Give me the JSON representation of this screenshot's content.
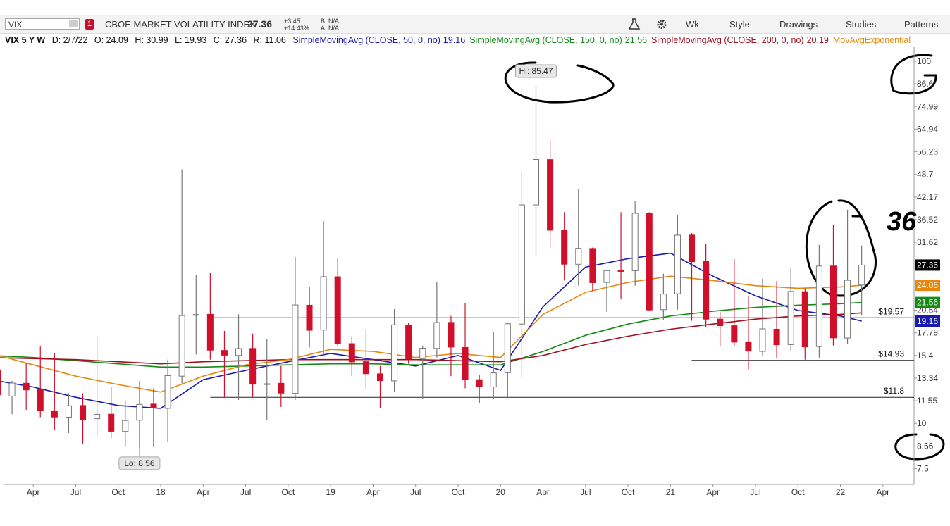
{
  "toolbar": {
    "symbol": "VIX",
    "alert_count": "1",
    "description": "CBOE MARKET VOLATILITY INDEX",
    "last": "27.36",
    "change": "+3.45",
    "change_pct": "+14.43%",
    "bid": "B: N/A",
    "ask": "A: N/A",
    "buttons": [
      "Wk",
      "Style",
      "Drawings",
      "Studies",
      "Patterns"
    ]
  },
  "legend_row": {
    "symbol_period": "VIX 5 Y W",
    "date": "D: 2/7/22",
    "open": "O: 24.09",
    "high": "H: 30.99",
    "low": "L: 19.93",
    "close": "C: 27.36",
    "range": "R: 11.06"
  },
  "chart_data": {
    "type": "candlestick",
    "x": [
      0.5,
      1.5,
      2.5,
      3.5,
      4.5,
      5.5,
      6.5,
      7.5,
      8.5,
      9.5,
      10.5,
      11.5,
      12.5,
      13.5,
      14.5,
      15.5,
      16.5,
      17.5,
      18.5,
      19.5,
      20.5,
      21.5,
      22.5,
      23.5,
      24.5,
      25.5,
      26.5,
      27.5,
      28.5,
      29.5,
      30.5,
      31.5,
      32.5,
      33.5,
      34.5,
      35.5,
      36.5,
      37.5,
      38.5,
      39.5,
      40.5,
      41.5,
      42.5,
      43.5,
      44.5,
      45.5,
      46.5,
      47.5,
      48.5,
      49.5,
      50.5,
      51.5,
      52.5,
      53.5,
      54.5,
      55.5,
      56.5,
      57.5,
      58.5,
      59.5,
      60.5,
      61.5
    ],
    "open": [
      14.04,
      11.9,
      12.9,
      12.4,
      10.8,
      10.4,
      11.2,
      10.3,
      10.6,
      9.5,
      10.2,
      11.3,
      11,
      13.5,
      19.9,
      20,
      15.9,
      15.4,
      16.1,
      12.8,
      12.9,
      12.1,
      21.2,
      18.1,
      25.4,
      16.6,
      14.8,
      13.7,
      13.1,
      18.7,
      15.1,
      16.1,
      19,
      16.2,
      13.2,
      12.6,
      13.8,
      18.8,
      40.1,
      53.5,
      34.2,
      27.5,
      30.4,
      24.5,
      26.4,
      26.4,
      38,
      20.6,
      22.8,
      33.1,
      28,
      19.4,
      18.6,
      16.8,
      15.8,
      18.2,
      16.5,
      23.1,
      16.3,
      27.2,
      17.2,
      24.09
    ],
    "high": [
      14.2,
      13.1,
      14.7,
      16.3,
      15.6,
      12.1,
      12.1,
      17.3,
      12.6,
      11.5,
      13.1,
      12.5,
      15,
      50.3,
      25.7,
      26,
      18,
      20,
      17.7,
      17.1,
      14.4,
      28.8,
      23.8,
      36.2,
      28.5,
      17.4,
      18.2,
      14.4,
      20.7,
      18.9,
      16.4,
      24.6,
      19.8,
      21.5,
      13.6,
      17.9,
      19,
      49.5,
      85.47,
      60.6,
      38.3,
      44.4,
      30.6,
      26,
      38.3,
      41.2,
      38.3,
      25.9,
      37.5,
      33.5,
      31.3,
      20.3,
      28.4,
      22.5,
      25.1,
      24.7,
      26.9,
      23.6,
      31.1,
      35.3,
      38.9,
      30.99
    ],
    "low": [
      10.6,
      10.6,
      10.9,
      10.4,
      9.6,
      9.4,
      8.8,
      9.2,
      9.1,
      8.6,
      8.56,
      8.6,
      8.9,
      12.9,
      15.5,
      15,
      11.8,
      11.6,
      11.8,
      10.2,
      11.1,
      11.6,
      16.2,
      15.3,
      16.3,
      13.5,
      12.4,
      11,
      12.2,
      14.6,
      11.7,
      15.2,
      13.5,
      12.5,
      11.4,
      11.7,
      11.8,
      13.4,
      29,
      30.5,
      24.8,
      24,
      23.2,
      20.3,
      22,
      24,
      20.4,
      19.3,
      20.6,
      19.2,
      18.4,
      16.3,
      16.3,
      14.1,
      15.4,
      15.1,
      15.9,
      15,
      15.2,
      16.4,
      16.6,
      19.93
    ],
    "close": [
      11.99,
      12.92,
      12.37,
      10.82,
      10.41,
      11.18,
      10.26,
      10.59,
      9.51,
      10.18,
      11.28,
      11.04,
      13.54,
      19.85,
      19.97,
      15.93,
      15.43,
      16.09,
      12.83,
      12.86,
      12.12,
      21.23,
      18.07,
      25.42,
      16.57,
      14.78,
      13.71,
      13.12,
      18.71,
      15.08,
      16.12,
      18.98,
      16.24,
      13.22,
      12.62,
      13.78,
      18.84,
      40.11,
      53.54,
      34.15,
      27.51,
      30.43,
      24.46,
      26.41,
      26.37,
      38.02,
      20.57,
      22.75,
      33.09,
      27.95,
      19.4,
      18.61,
      16.76,
      15.83,
      18.24,
      16.48,
      23.14,
      16.26,
      27.19,
      17.22,
      24.83,
      27.36
    ],
    "up_color": "#ffffff",
    "down_color": "#d0102a",
    "series": [
      {
        "name": "SimpleMovingAvg (CLOSE, 50, 0, no)",
        "color": "#1a1ab0",
        "x": [
          0,
          3,
          6,
          9,
          12,
          15,
          18,
          21,
          24,
          27,
          30,
          33,
          36,
          39,
          42,
          45,
          48,
          51,
          54,
          57,
          60,
          61.5
        ],
        "values": [
          13.2,
          12.6,
          11.8,
          11.2,
          11,
          13.2,
          14,
          14.8,
          15.6,
          15,
          14.4,
          15.4,
          14,
          21,
          27,
          28.5,
          29.5,
          25.5,
          22.5,
          20.5,
          19.8,
          19.16
        ]
      },
      {
        "name": "SimpleMovingAvg (CLOSE, 150, 0, no)",
        "color": "#168a16",
        "x": [
          0,
          3,
          6,
          9,
          12,
          15,
          18,
          21,
          24,
          27,
          30,
          33,
          36,
          39,
          42,
          45,
          48,
          51,
          54,
          57,
          60,
          61.5
        ],
        "values": [
          15.4,
          15.2,
          14.9,
          14.6,
          14.3,
          14.3,
          14.4,
          14.5,
          14.6,
          14.6,
          14.5,
          14.5,
          14.5,
          15.8,
          17.5,
          18.8,
          19.8,
          20.4,
          20.9,
          21.2,
          21.4,
          21.56
        ]
      },
      {
        "name": "SimpleMovingAvg (CLOSE, 200, 0, no)",
        "color": "#a01020",
        "x": [
          0,
          3,
          6,
          9,
          12,
          15,
          18,
          21,
          24,
          27,
          30,
          33,
          36,
          39,
          42,
          45,
          48,
          51,
          54,
          57,
          60,
          61.5
        ],
        "values": [
          15.2,
          15.1,
          15,
          14.8,
          14.6,
          14.8,
          14.9,
          15,
          15,
          15,
          15,
          14.9,
          14.8,
          15.4,
          16.5,
          17.4,
          18.2,
          18.8,
          19.4,
          19.8,
          20,
          20.19
        ]
      },
      {
        "name": "MovAvgExponential (CLOSE,...",
        "color": "#e8870e",
        "x": [
          0,
          3,
          6,
          9,
          12,
          15,
          18,
          21,
          24,
          27,
          30,
          33,
          36,
          39,
          42,
          45,
          48,
          51,
          54,
          57,
          60,
          61.5
        ],
        "values": [
          15.6,
          14.5,
          13.5,
          12.8,
          12.2,
          13.5,
          14.5,
          15,
          16,
          15.8,
          15.2,
          15.6,
          15.2,
          20,
          23,
          24.5,
          25.5,
          24.8,
          24,
          23.6,
          23.8,
          24.06
        ]
      }
    ],
    "log_scale": true,
    "ylim": [
      6.78,
      107.9
    ],
    "yticks": [
      100,
      86.6,
      74.99,
      64.94,
      56.23,
      48.7,
      42.17,
      36.52,
      31.62,
      20.54,
      17.78,
      15.4,
      13.34,
      11.55,
      10,
      8.66,
      7.5
    ],
    "xlim": [
      0.9,
      65.2
    ],
    "xticks": [
      {
        "value": 3,
        "label": "Apr"
      },
      {
        "value": 6,
        "label": "Jul"
      },
      {
        "value": 9,
        "label": "Oct"
      },
      {
        "value": 12,
        "label": "18"
      },
      {
        "value": 15,
        "label": "Apr"
      },
      {
        "value": 18,
        "label": "Jul"
      },
      {
        "value": 21,
        "label": "Oct"
      },
      {
        "value": 24,
        "label": "19"
      },
      {
        "value": 27,
        "label": "Apr"
      },
      {
        "value": 30,
        "label": "Jul"
      },
      {
        "value": 33,
        "label": "Oct"
      },
      {
        "value": 36,
        "label": "20"
      },
      {
        "value": 39,
        "label": "Apr"
      },
      {
        "value": 42,
        "label": "Jul"
      },
      {
        "value": 45,
        "label": "Oct"
      },
      {
        "value": 48,
        "label": "21"
      },
      {
        "value": 51,
        "label": "Apr"
      },
      {
        "value": 54,
        "label": "Jul"
      },
      {
        "value": 57,
        "label": "Oct"
      },
      {
        "value": 60,
        "label": "22"
      },
      {
        "value": 63,
        "label": "Apr"
      }
    ],
    "levels": [
      {
        "value": 19.57,
        "label": "$19.57",
        "x_start": 15.5
      },
      {
        "value": 14.93,
        "label": "$14.93",
        "x_start": 49.5
      },
      {
        "value": 11.8,
        "label": "$11.8",
        "x_start": 15.5
      }
    ],
    "annotations": [
      {
        "text": "Hi: 85.47",
        "x": 38.5,
        "y": 85.47,
        "side": "above"
      },
      {
        "text": "Lo: 8.56",
        "x": 10.5,
        "y": 8.56,
        "side": "below"
      }
    ],
    "handwritten": "36"
  }
}
